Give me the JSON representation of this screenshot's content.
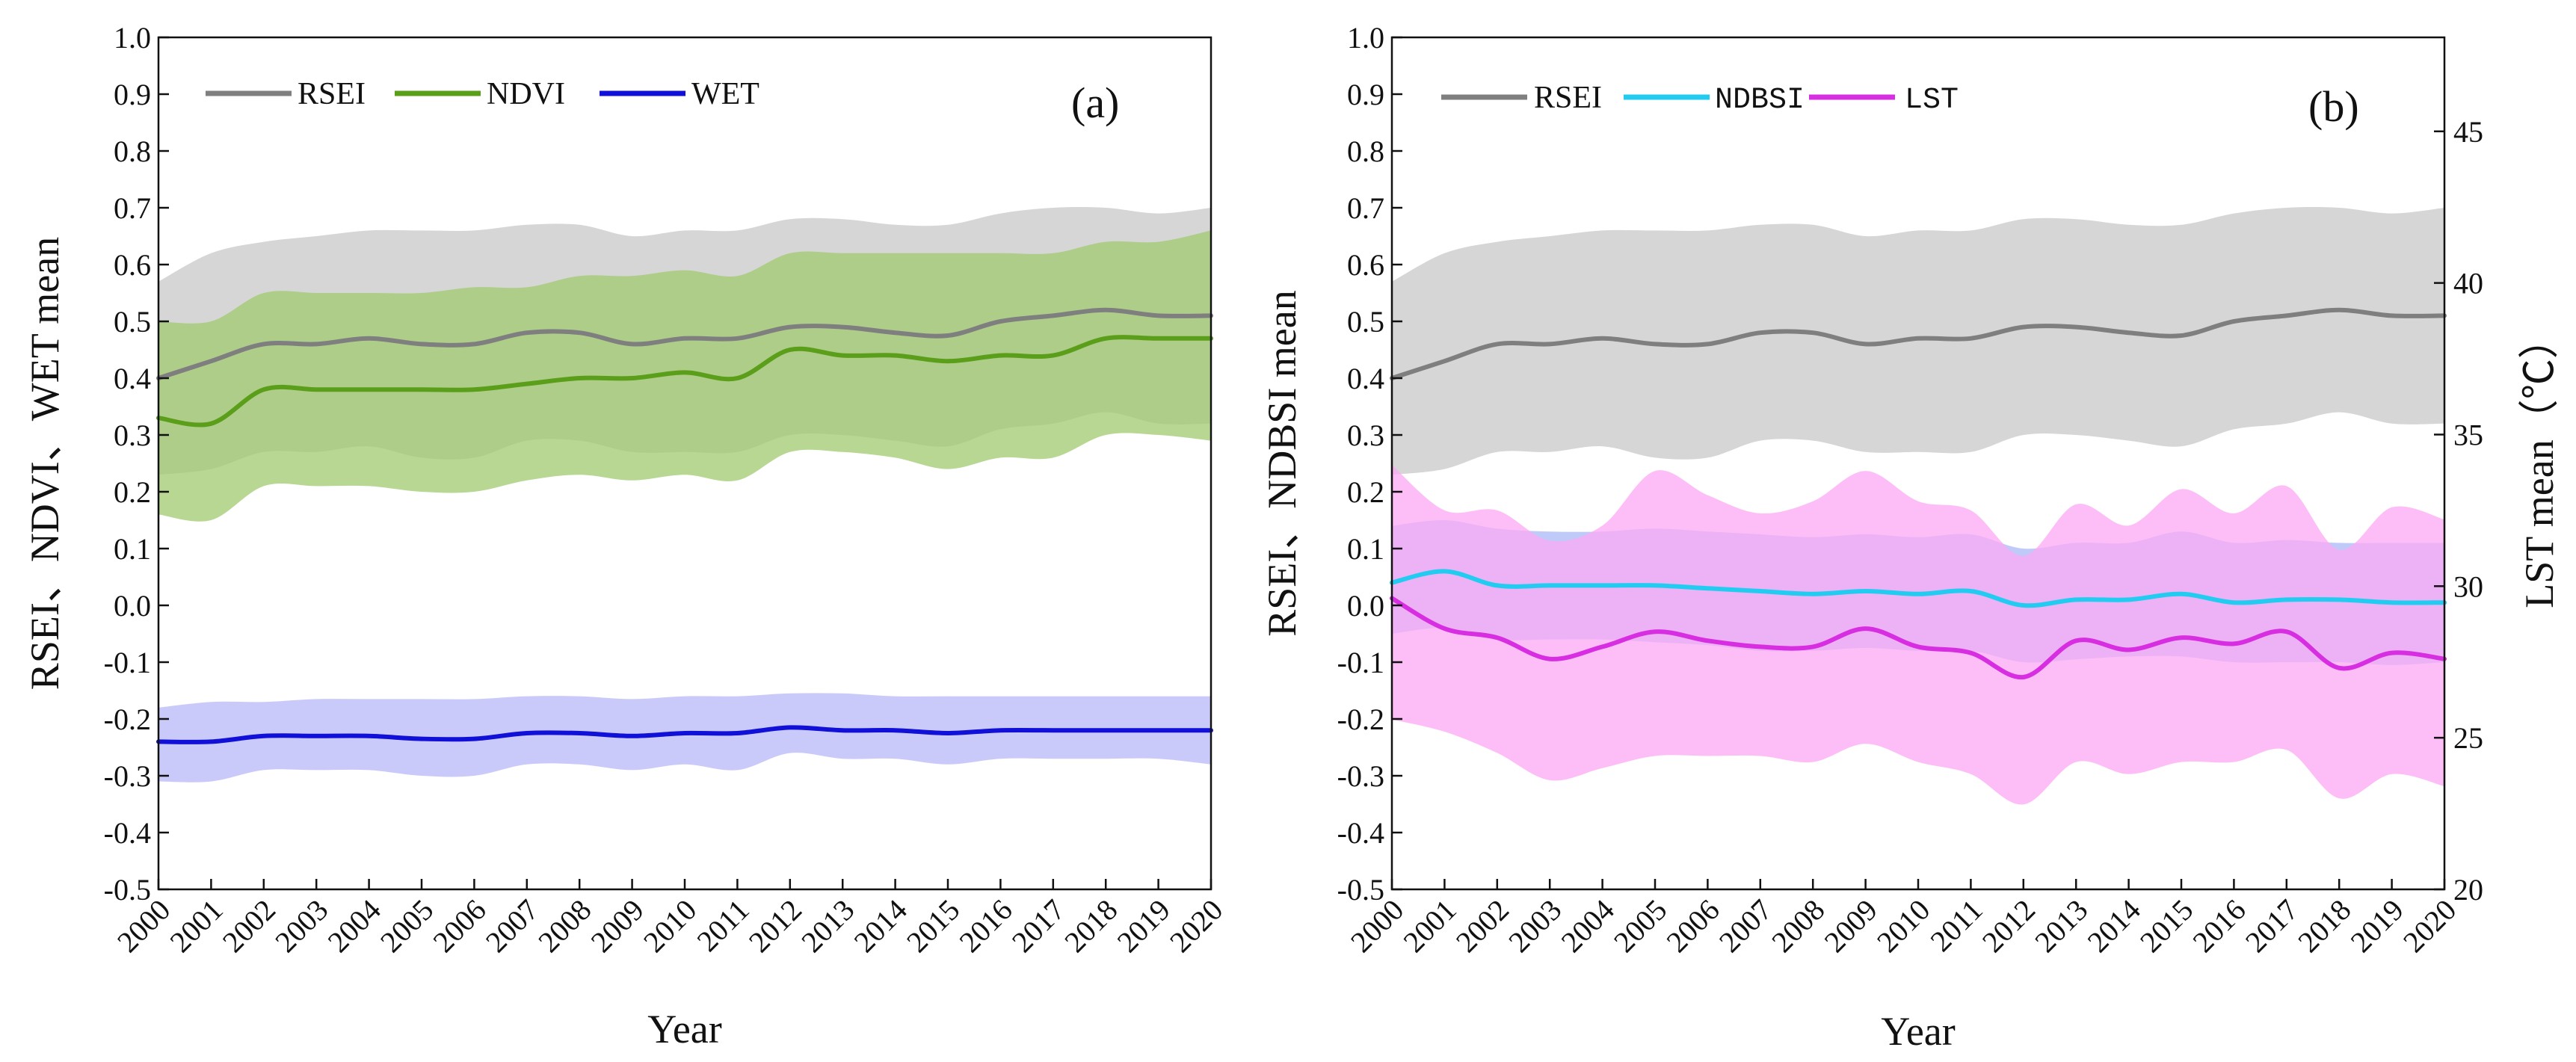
{
  "chart_data": [
    {
      "type": "line",
      "panel_label": "(a)",
      "xlabel": "Year",
      "ylabel": "RSEI、NDVI、WET mean",
      "ylim": [
        -0.5,
        1.0
      ],
      "yticks": [
        "-0.5",
        "-0.4",
        "-0.3",
        "-0.2",
        "-0.1",
        "0.0",
        "0.1",
        "0.2",
        "0.3",
        "0.4",
        "0.5",
        "0.6",
        "0.7",
        "0.8",
        "0.9",
        "1.0"
      ],
      "categories": [
        "2000",
        "2001",
        "2002",
        "2003",
        "2004",
        "2005",
        "2006",
        "2007",
        "2008",
        "2009",
        "2010",
        "2011",
        "2012",
        "2013",
        "2014",
        "2015",
        "2016",
        "2017",
        "2018",
        "2019",
        "2020"
      ],
      "legend_position": "top-left",
      "series": [
        {
          "name": "RSEI",
          "color": "#7f7f7f",
          "band_color": "#c8c8c8",
          "values": [
            0.4,
            0.43,
            0.46,
            0.46,
            0.47,
            0.46,
            0.46,
            0.48,
            0.48,
            0.46,
            0.47,
            0.47,
            0.49,
            0.49,
            0.48,
            0.475,
            0.5,
            0.51,
            0.52,
            0.51,
            0.51
          ],
          "upper": [
            0.57,
            0.62,
            0.64,
            0.65,
            0.66,
            0.66,
            0.66,
            0.67,
            0.67,
            0.65,
            0.66,
            0.66,
            0.68,
            0.68,
            0.67,
            0.67,
            0.69,
            0.7,
            0.7,
            0.69,
            0.7
          ],
          "lower": [
            0.23,
            0.24,
            0.27,
            0.27,
            0.28,
            0.26,
            0.26,
            0.29,
            0.29,
            0.27,
            0.27,
            0.27,
            0.3,
            0.3,
            0.29,
            0.28,
            0.31,
            0.32,
            0.34,
            0.32,
            0.32
          ]
        },
        {
          "name": "NDVI",
          "color": "#5a9e1a",
          "band_color": "#9fca6f",
          "values": [
            0.33,
            0.32,
            0.38,
            0.38,
            0.38,
            0.38,
            0.38,
            0.39,
            0.4,
            0.4,
            0.41,
            0.4,
            0.45,
            0.44,
            0.44,
            0.43,
            0.44,
            0.44,
            0.47,
            0.47,
            0.47
          ],
          "upper": [
            0.5,
            0.5,
            0.55,
            0.55,
            0.55,
            0.55,
            0.56,
            0.56,
            0.58,
            0.58,
            0.59,
            0.58,
            0.62,
            0.62,
            0.62,
            0.62,
            0.62,
            0.62,
            0.64,
            0.64,
            0.66
          ],
          "lower": [
            0.16,
            0.15,
            0.21,
            0.21,
            0.21,
            0.2,
            0.2,
            0.22,
            0.23,
            0.22,
            0.23,
            0.22,
            0.27,
            0.27,
            0.26,
            0.24,
            0.26,
            0.26,
            0.3,
            0.3,
            0.29
          ]
        },
        {
          "name": "WET",
          "color": "#1010d8",
          "band_color": "#b8b8f8",
          "values": [
            -0.24,
            -0.24,
            -0.23,
            -0.23,
            -0.23,
            -0.235,
            -0.235,
            -0.225,
            -0.225,
            -0.23,
            -0.225,
            -0.225,
            -0.215,
            -0.22,
            -0.22,
            -0.225,
            -0.22,
            -0.22,
            -0.22,
            -0.22,
            -0.22
          ],
          "upper": [
            -0.18,
            -0.17,
            -0.17,
            -0.165,
            -0.165,
            -0.165,
            -0.165,
            -0.16,
            -0.16,
            -0.165,
            -0.16,
            -0.16,
            -0.155,
            -0.155,
            -0.16,
            -0.16,
            -0.16,
            -0.16,
            -0.16,
            -0.16,
            -0.16
          ],
          "lower": [
            -0.31,
            -0.31,
            -0.29,
            -0.29,
            -0.29,
            -0.3,
            -0.3,
            -0.28,
            -0.28,
            -0.29,
            -0.28,
            -0.29,
            -0.26,
            -0.27,
            -0.27,
            -0.28,
            -0.27,
            -0.27,
            -0.27,
            -0.27,
            -0.28
          ]
        }
      ]
    },
    {
      "type": "line",
      "panel_label": "(b)",
      "xlabel": "Year",
      "ylabel": "RSEI、NDBSI mean",
      "ylabel_right": "LST mean（℃）",
      "ylim": [
        -0.5,
        1.0
      ],
      "ylim_right": [
        20,
        48.1
      ],
      "yticks": [
        "-0.5",
        "-0.4",
        "-0.3",
        "-0.2",
        "-0.1",
        "0.0",
        "0.1",
        "0.2",
        "0.3",
        "0.4",
        "0.5",
        "0.6",
        "0.7",
        "0.8",
        "0.9",
        "1.0"
      ],
      "yticks_right": [
        "20",
        "25",
        "30",
        "35",
        "40",
        "45"
      ],
      "categories": [
        "2000",
        "2001",
        "2002",
        "2003",
        "2004",
        "2005",
        "2006",
        "2007",
        "2008",
        "2009",
        "2010",
        "2011",
        "2012",
        "2013",
        "2014",
        "2015",
        "2016",
        "2017",
        "2018",
        "2019",
        "2020"
      ],
      "legend_position": "top-left",
      "series": [
        {
          "name": "RSEI",
          "axis": "left",
          "color": "#7f7f7f",
          "band_color": "#c8c8c8",
          "values": [
            0.4,
            0.43,
            0.46,
            0.46,
            0.47,
            0.46,
            0.46,
            0.48,
            0.48,
            0.46,
            0.47,
            0.47,
            0.49,
            0.49,
            0.48,
            0.475,
            0.5,
            0.51,
            0.52,
            0.51,
            0.51
          ],
          "upper": [
            0.57,
            0.62,
            0.64,
            0.65,
            0.66,
            0.66,
            0.66,
            0.67,
            0.67,
            0.65,
            0.66,
            0.66,
            0.68,
            0.68,
            0.67,
            0.67,
            0.69,
            0.7,
            0.7,
            0.69,
            0.7
          ],
          "lower": [
            0.23,
            0.24,
            0.27,
            0.27,
            0.28,
            0.26,
            0.26,
            0.29,
            0.29,
            0.27,
            0.27,
            0.27,
            0.3,
            0.3,
            0.29,
            0.28,
            0.31,
            0.32,
            0.34,
            0.32,
            0.32
          ]
        },
        {
          "name": "NDBSI",
          "axis": "left",
          "color": "#22ccf0",
          "band_color": "#a9b8f7",
          "values": [
            0.04,
            0.06,
            0.035,
            0.035,
            0.035,
            0.035,
            0.03,
            0.025,
            0.02,
            0.025,
            0.02,
            0.025,
            0.0,
            0.01,
            0.01,
            0.02,
            0.005,
            0.01,
            0.01,
            0.005,
            0.005
          ],
          "upper": [
            0.14,
            0.15,
            0.135,
            0.13,
            0.13,
            0.135,
            0.13,
            0.125,
            0.12,
            0.125,
            0.12,
            0.125,
            0.1,
            0.11,
            0.11,
            0.13,
            0.11,
            0.115,
            0.11,
            0.11,
            0.11
          ],
          "lower": [
            -0.05,
            -0.04,
            -0.06,
            -0.06,
            -0.06,
            -0.065,
            -0.07,
            -0.08,
            -0.08,
            -0.075,
            -0.08,
            -0.08,
            -0.1,
            -0.095,
            -0.09,
            -0.09,
            -0.1,
            -0.1,
            -0.1,
            -0.105,
            -0.1
          ]
        },
        {
          "name": "LST",
          "axis": "right",
          "color": "#d62ee0",
          "band_color": "#fca8f4",
          "values": [
            29.6,
            28.6,
            28.3,
            27.6,
            28.0,
            28.5,
            28.2,
            28.0,
            28.0,
            28.6,
            28.0,
            27.8,
            27.0,
            28.2,
            27.9,
            28.3,
            28.1,
            28.5,
            27.3,
            27.8,
            27.6
          ],
          "upper": [
            34.0,
            32.5,
            32.5,
            31.5,
            32.0,
            33.8,
            33.0,
            32.4,
            32.8,
            33.8,
            32.8,
            32.5,
            31.0,
            32.7,
            32.0,
            33.2,
            32.4,
            33.3,
            31.2,
            32.6,
            32.2
          ],
          "lower": [
            25.6,
            25.2,
            24.5,
            23.6,
            24.0,
            24.4,
            24.4,
            24.4,
            24.2,
            24.8,
            24.2,
            23.8,
            22.8,
            24.2,
            23.8,
            24.2,
            24.2,
            24.6,
            23.0,
            23.8,
            23.4
          ]
        }
      ]
    }
  ]
}
